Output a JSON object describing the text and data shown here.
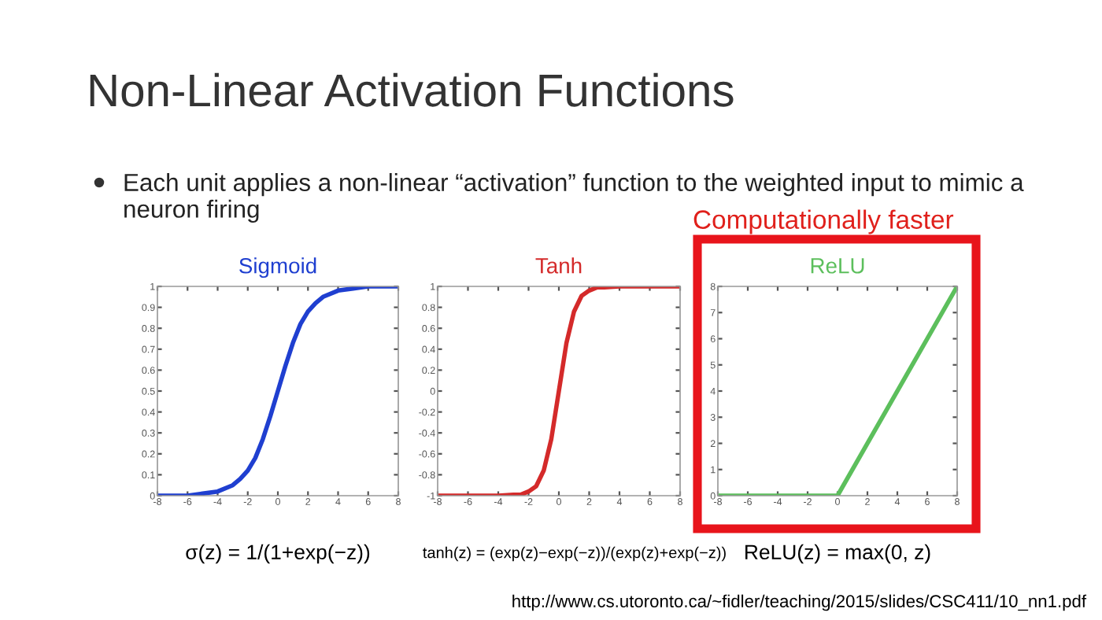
{
  "chart_data": [
    {
      "type": "line",
      "title": "Sigmoid",
      "x": [
        -8,
        -7,
        -6,
        -5,
        -4,
        -3,
        -2.5,
        -2,
        -1.5,
        -1,
        -0.5,
        0,
        0.5,
        1,
        1.5,
        2,
        2.5,
        3,
        4,
        5,
        6,
        7,
        8
      ],
      "series": [
        {
          "color": "#1f3fd0",
          "values": [
            0.0,
            0.0,
            0.0,
            0.01,
            0.02,
            0.05,
            0.08,
            0.12,
            0.18,
            0.27,
            0.38,
            0.5,
            0.62,
            0.73,
            0.82,
            0.88,
            0.92,
            0.95,
            0.98,
            0.99,
            1.0,
            1.0,
            1.0
          ]
        }
      ],
      "xlim": [
        -8,
        8
      ],
      "xticks": [
        -8,
        -6,
        -4,
        -2,
        0,
        2,
        4,
        6,
        8
      ],
      "ylim": [
        0,
        1
      ],
      "yticks": [
        0,
        0.1,
        0.2,
        0.3,
        0.4,
        0.5,
        0.6,
        0.7,
        0.8,
        0.9,
        1
      ],
      "grid": false,
      "legend": false,
      "line_style": "solid",
      "marker": "none",
      "annotations": [
        "σ(z) = 1/(1+exp(−z))",
        "Non-Linear Activation Functions",
        "Each unit applies a non-linear “activation” function to the weighted input to mimic a neuron firing"
      ]
    },
    {
      "type": "line",
      "title": "Tanh",
      "x": [
        -8,
        -6,
        -4,
        -3,
        -2.5,
        -2,
        -1.5,
        -1,
        -0.5,
        0,
        0.5,
        1,
        1.5,
        2,
        2.5,
        3,
        4,
        6,
        8
      ],
      "series": [
        {
          "color": "#d42a2a",
          "values": [
            -1.0,
            -1.0,
            -1.0,
            -0.99,
            -0.99,
            -0.96,
            -0.91,
            -0.76,
            -0.46,
            0.0,
            0.46,
            0.76,
            0.91,
            0.96,
            0.99,
            0.99,
            1.0,
            1.0,
            1.0
          ]
        }
      ],
      "xlim": [
        -8,
        8
      ],
      "xticks": [
        -8,
        -6,
        -4,
        -2,
        0,
        2,
        4,
        6,
        8
      ],
      "ylim": [
        -1,
        1
      ],
      "yticks": [
        -1,
        -0.8,
        -0.6,
        -0.4,
        -0.2,
        0,
        0.2,
        0.4,
        0.6,
        0.8,
        1
      ],
      "grid": false,
      "legend": false,
      "line_style": "solid",
      "marker": "none",
      "annotations": [
        "tanh(z) = (exp(z)−exp(−z))/(exp(z)+exp(−z))"
      ]
    },
    {
      "type": "line",
      "title": "ReLU",
      "x": [
        -8,
        0,
        8
      ],
      "series": [
        {
          "color": "#5cbf5c",
          "values": [
            0,
            0,
            8
          ]
        }
      ],
      "xlim": [
        -8,
        8
      ],
      "xticks": [
        -8,
        -6,
        -4,
        -2,
        0,
        2,
        4,
        6,
        8
      ],
      "ylim": [
        0,
        8
      ],
      "yticks": [
        0,
        1,
        2,
        3,
        4,
        5,
        6,
        7,
        8
      ],
      "grid": false,
      "legend": false,
      "line_style": "solid",
      "marker": "none",
      "annotations": [
        "ReLU(z) = max(0, z)",
        "Computationally faster",
        "http://www.cs.utoronto.ca/~fidler/teaching/2015/slides/CSC411/10_nn1.pdf"
      ]
    }
  ]
}
